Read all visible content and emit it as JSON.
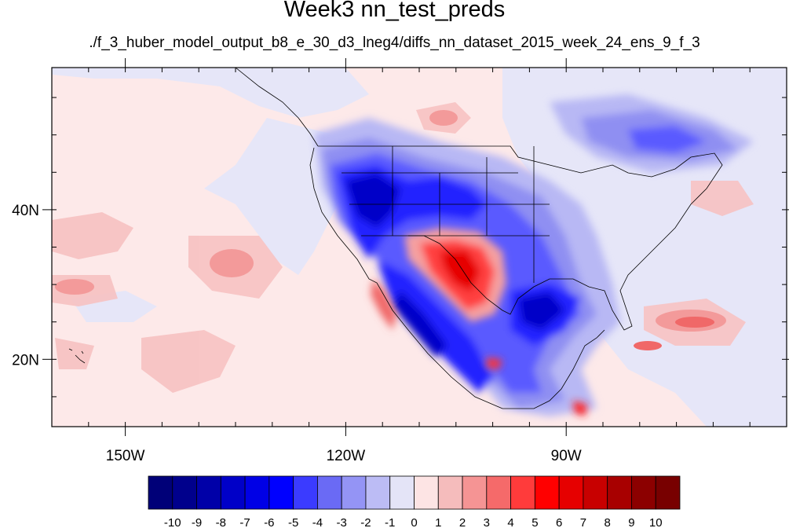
{
  "title": "Week3 nn_test_preds",
  "subtitle": "./f_3_huber_model_output_b8_e_30_d3_lneg4/diffs_nn_dataset_2015_week_24_ens_9_f_3",
  "map": {
    "lon_range": [
      -160,
      -60
    ],
    "lat_range": [
      11,
      59
    ],
    "lat_ticks": [
      {
        "value": 40,
        "label": "40N"
      },
      {
        "value": 20,
        "label": "20N"
      }
    ],
    "lon_ticks": [
      {
        "value": -150,
        "label": "150W"
      },
      {
        "value": -120,
        "label": "120W"
      },
      {
        "value": -90,
        "label": "90W"
      }
    ]
  },
  "colorbar": {
    "labels": [
      "-10",
      "-9",
      "-8",
      "-7",
      "-6",
      "-5",
      "-4",
      "-3",
      "-2",
      "-1",
      "0",
      "1",
      "2",
      "3",
      "4",
      "5",
      "6",
      "7",
      "8",
      "9",
      "10"
    ],
    "colors": [
      "#000078",
      "#00008c",
      "#0000a8",
      "#0000c8",
      "#0000e6",
      "#0000ff",
      "#3b3bff",
      "#6a6af5",
      "#9494f5",
      "#bcbcf5",
      "#e4e4f7",
      "#fde4e4",
      "#f5bcbc",
      "#f59494",
      "#f56a6a",
      "#ff3b3b",
      "#ff0000",
      "#e60000",
      "#c80000",
      "#a80000",
      "#8c0000",
      "#780000"
    ]
  }
}
